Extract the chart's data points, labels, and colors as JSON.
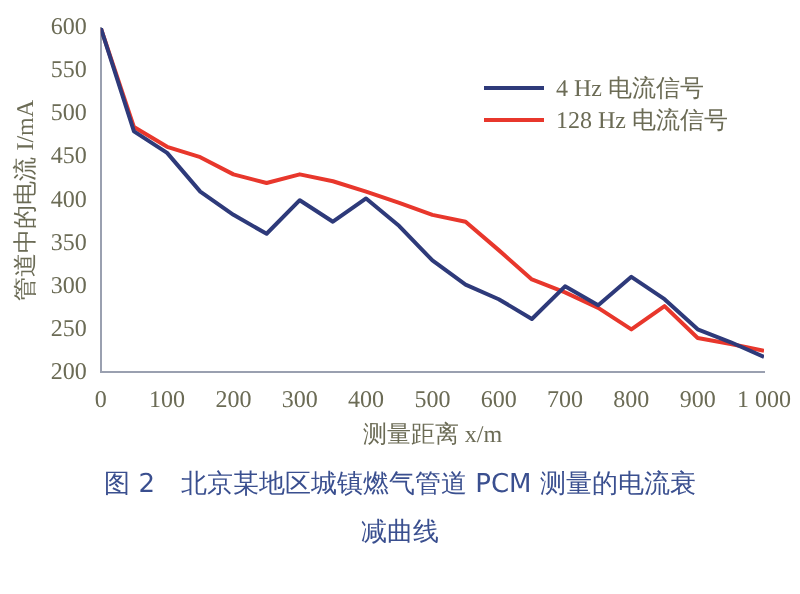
{
  "chart_data": {
    "type": "line",
    "title": "图 2　北京某地区城镇燃气管道 PCM 测量的电流衰减曲线",
    "xlabel": "测量距离 x/m",
    "ylabel": "管道中的电流 I/mA",
    "x": [
      0,
      50,
      100,
      150,
      200,
      250,
      300,
      350,
      400,
      450,
      500,
      550,
      600,
      650,
      700,
      750,
      800,
      850,
      900,
      950,
      1000
    ],
    "series": [
      {
        "name": "4 Hz 电流信号",
        "color": "#2e3a7a",
        "values": [
          600,
          480,
          455,
          410,
          383,
          361,
          400,
          375,
          402,
          370,
          330,
          302,
          285,
          262,
          300,
          278,
          311,
          285,
          250,
          235,
          218
        ]
      },
      {
        "name": "128 Hz 电流信号",
        "color": "#e8372c",
        "values": [
          600,
          485,
          462,
          450,
          430,
          420,
          430,
          422,
          410,
          397,
          383,
          375,
          342,
          308,
          293,
          275,
          250,
          277,
          240,
          233,
          225
        ]
      }
    ],
    "xlim": [
      0,
      1000
    ],
    "xticks": [
      0,
      100,
      200,
      300,
      400,
      500,
      600,
      700,
      800,
      900,
      {
        "value": 1000,
        "label": "1 000"
      }
    ],
    "ylim": [
      200,
      600
    ],
    "yticks": [
      200,
      250,
      300,
      350,
      400,
      450,
      500,
      550,
      600
    ],
    "grid": false,
    "legend": "top right",
    "marker": "none",
    "line_style": "solid"
  }
}
